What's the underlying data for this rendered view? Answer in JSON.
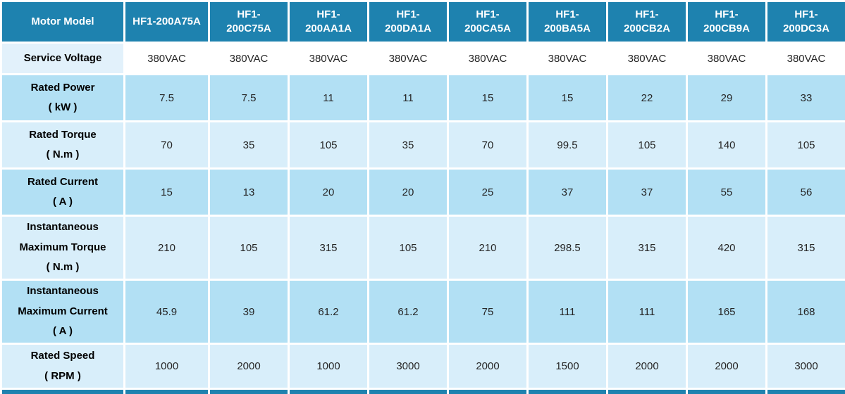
{
  "colors": {
    "header_bg": "#1E82AF",
    "header_text": "#FFFFFF",
    "row_medium_bg": "#B2E0F4",
    "row_light_bg": "#D8EEFA",
    "service_row_label_bg": "#E2F1FB",
    "service_row_data_bg": "#FFFFFF",
    "label_text": "#000000",
    "value_text": "#262626",
    "grid_gap": "#FFFFFF"
  },
  "table": {
    "corner_label": "Motor Model",
    "models": [
      "HF1-200A75A",
      "HF1-200C75A",
      "HF1-200AA1A",
      "HF1-200DA1A",
      "HF1-200CA5A",
      "HF1-200BA5A",
      "HF1-200CB2A",
      "HF1-200CB9A",
      "HF1-200DC3A"
    ],
    "rows": [
      {
        "id": "service-voltage",
        "label": "Service Voltage",
        "unit": "",
        "shade": "service",
        "values": [
          "380VAC",
          "380VAC",
          "380VAC",
          "380VAC",
          "380VAC",
          "380VAC",
          "380VAC",
          "380VAC",
          "380VAC"
        ]
      },
      {
        "id": "rated-power",
        "label": "Rated Power",
        "unit": "( kW )",
        "shade": "medium",
        "values": [
          "7.5",
          "7.5",
          "11",
          "11",
          "15",
          "15",
          "22",
          "29",
          "33"
        ]
      },
      {
        "id": "rated-torque",
        "label": "Rated Torque",
        "unit": "( N.m )",
        "shade": "light",
        "values": [
          "70",
          "35",
          "105",
          "35",
          "70",
          "99.5",
          "105",
          "140",
          "105"
        ]
      },
      {
        "id": "rated-current",
        "label": "Rated Current",
        "unit": "( A )",
        "shade": "medium",
        "values": [
          "15",
          "13",
          "20",
          "20",
          "25",
          "37",
          "37",
          "55",
          "56"
        ]
      },
      {
        "id": "instantaneous-maximum-torque",
        "label": "Instantaneous Maximum Torque",
        "unit": "( N.m )",
        "shade": "light",
        "values": [
          "210",
          "105",
          "315",
          "105",
          "210",
          "298.5",
          "315",
          "420",
          "315"
        ]
      },
      {
        "id": "instantaneous-maximum-current",
        "label": "Instantaneous Maximum Current",
        "unit": "( A )",
        "shade": "medium",
        "values": [
          "45.9",
          "39",
          "61.2",
          "61.2",
          "75",
          "111",
          "111",
          "165",
          "168"
        ]
      },
      {
        "id": "rated-speed",
        "label": "Rated Speed",
        "unit": "( RPM )",
        "shade": "light",
        "values": [
          "1000",
          "2000",
          "1000",
          "3000",
          "2000",
          "1500",
          "2000",
          "2000",
          "3000"
        ]
      }
    ],
    "cutoff_row_present": true
  }
}
